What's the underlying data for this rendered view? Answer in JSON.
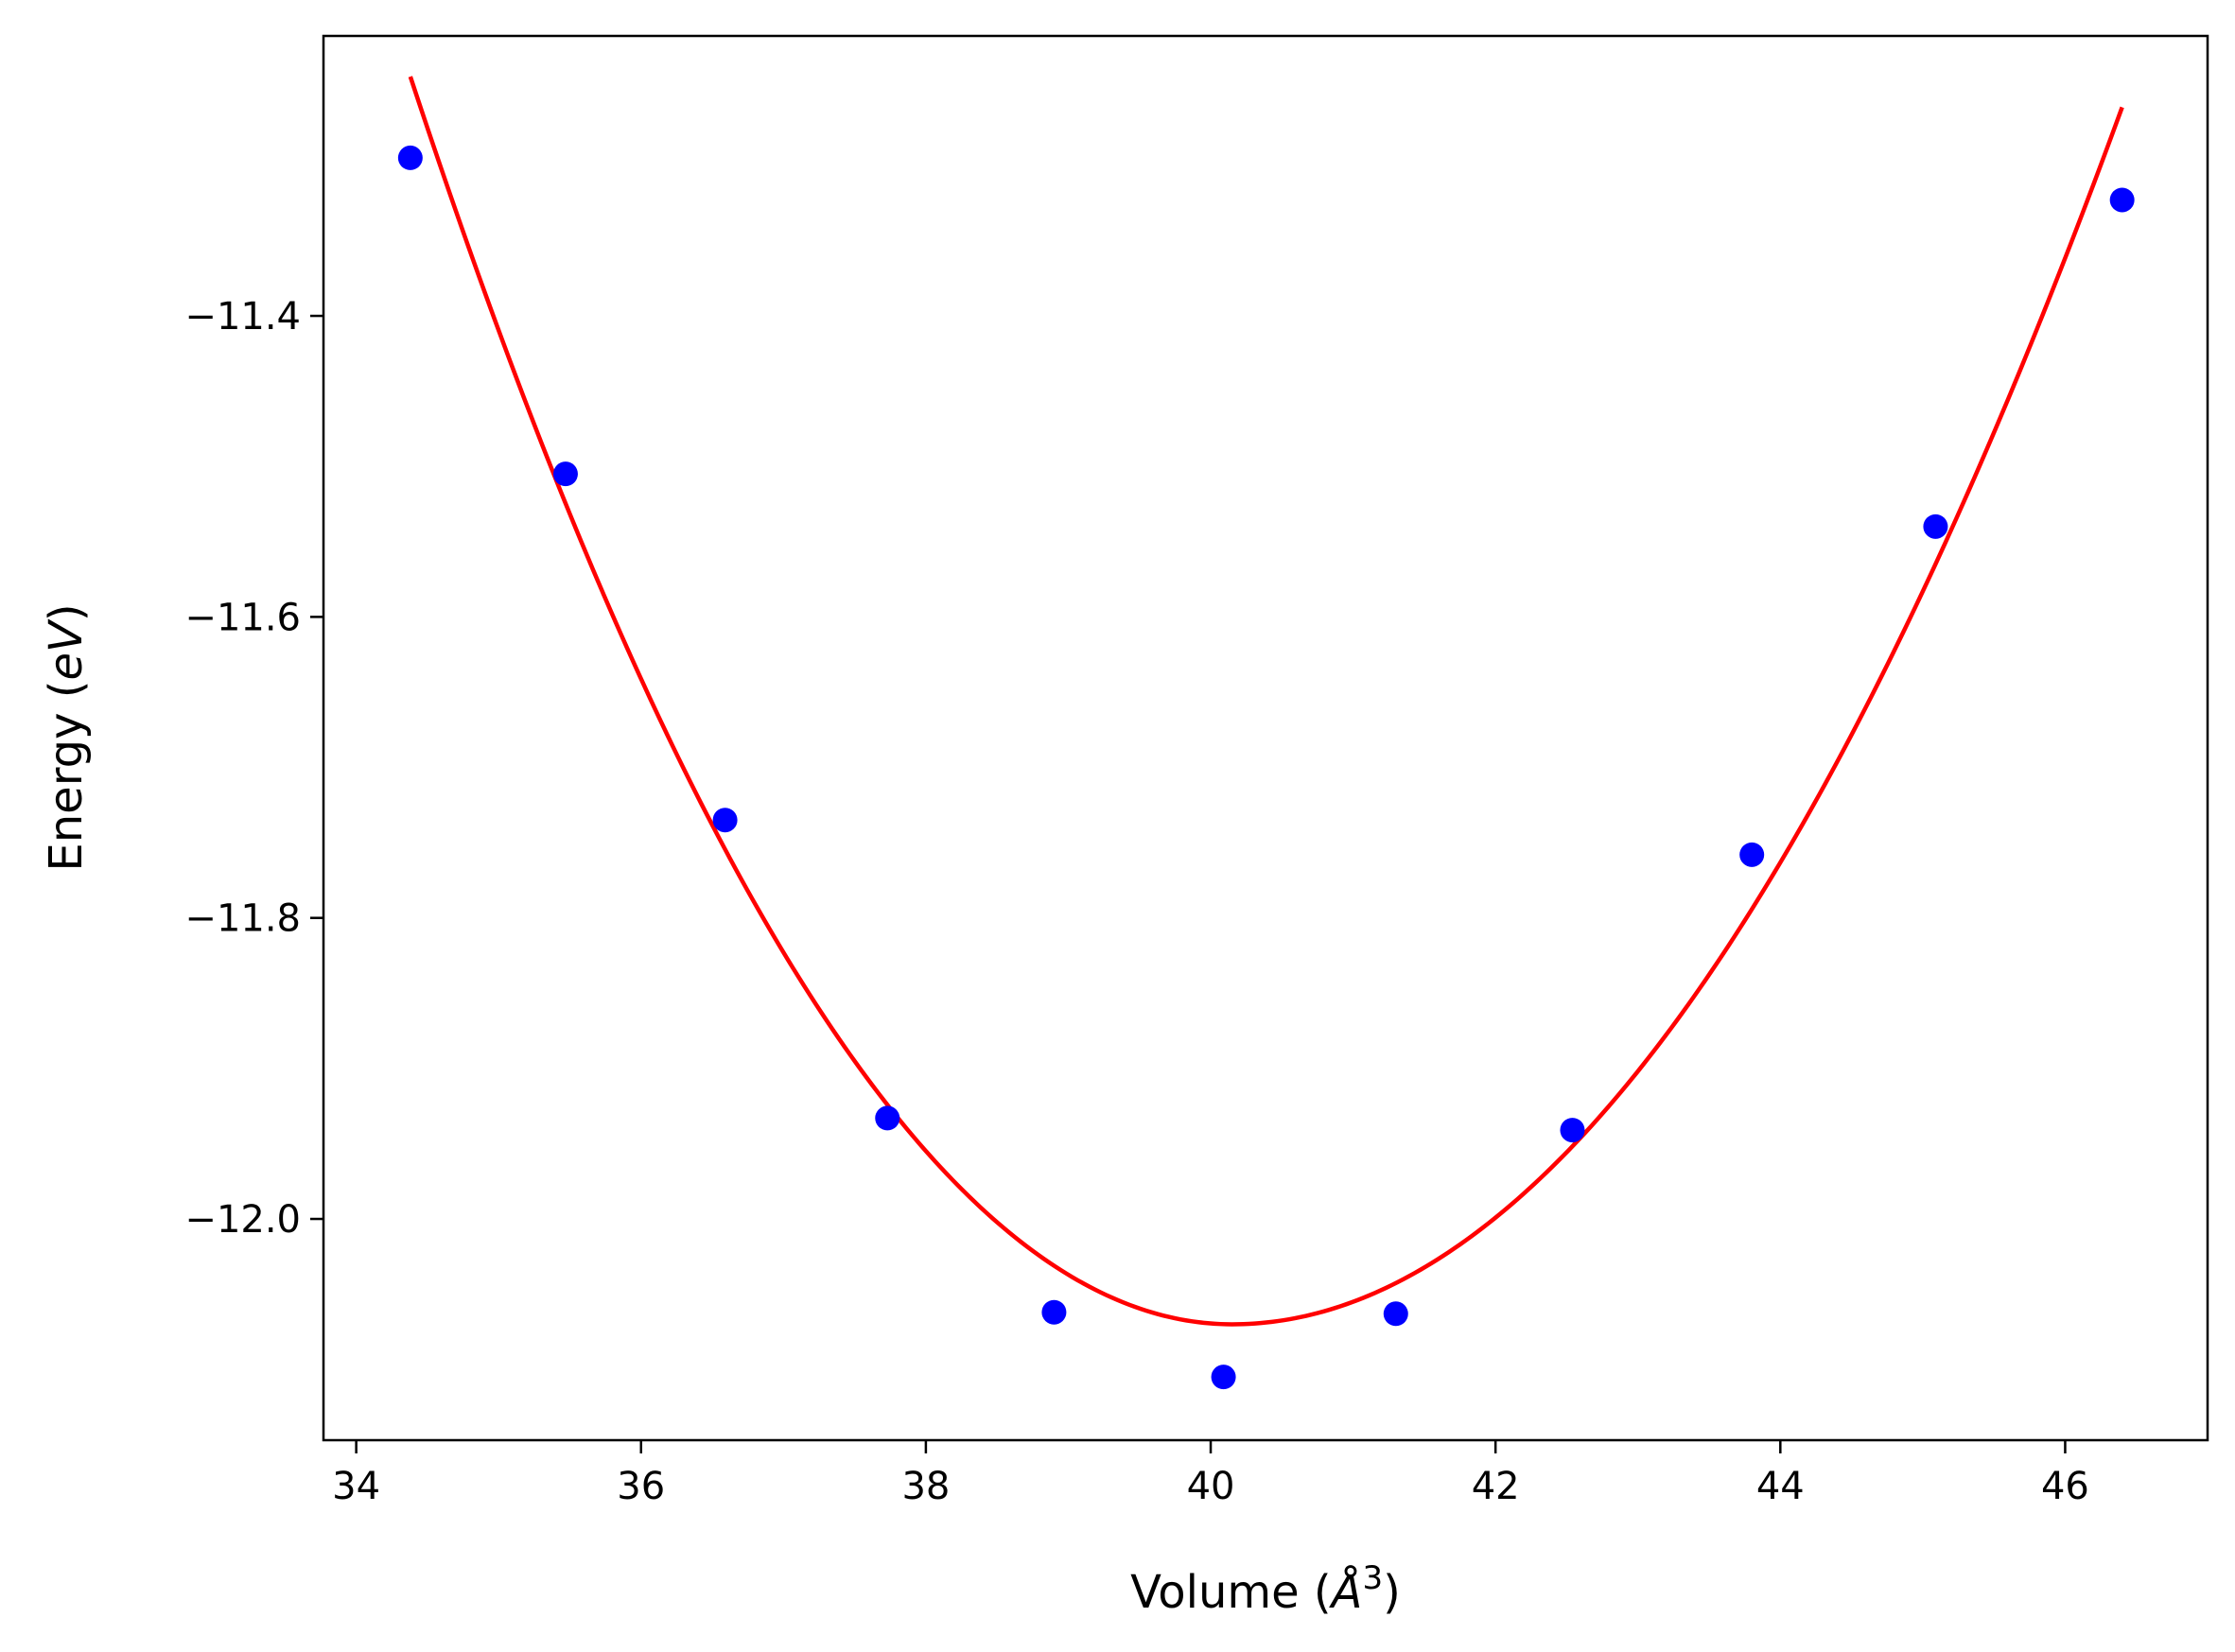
{
  "chart_data": {
    "type": "scatter",
    "xlabel": "Volume",
    "xlabel_unit": "Å",
    "xlabel_exp": "3",
    "ylabel": "Energy",
    "ylabel_unit": "eV",
    "xlim": [
      33.77,
      47.0
    ],
    "ylim": [
      -12.147,
      -11.214
    ],
    "x_ticks": [
      34,
      36,
      38,
      40,
      42,
      44,
      46
    ],
    "x_tick_labels": [
      "34",
      "36",
      "38",
      "40",
      "42",
      "44",
      "46"
    ],
    "y_ticks": [
      -11.4,
      -11.6,
      -11.8,
      -12.0
    ],
    "y_tick_labels": [
      "−11.4",
      "−11.6",
      "−11.8",
      "−12.0"
    ],
    "grid": false,
    "series": [
      {
        "kind": "points",
        "color": "#0000ff",
        "x": [
          34.38,
          35.47,
          36.59,
          37.73,
          38.9,
          40.09,
          41.3,
          42.54,
          43.8,
          45.09,
          46.4
        ],
        "y": [
          -11.295,
          -11.505,
          -11.735,
          -11.933,
          -12.062,
          -12.105,
          -12.063,
          -11.941,
          -11.758,
          -11.54,
          -11.323
        ]
      },
      {
        "kind": "fit-curve",
        "color": "#ff0000",
        "x_range": [
          34.38,
          46.4
        ],
        "vertex_x": 40.15,
        "vertex_y": -12.07,
        "coeff_left": 0.0249,
        "coeff_right": 0.0207
      }
    ]
  }
}
